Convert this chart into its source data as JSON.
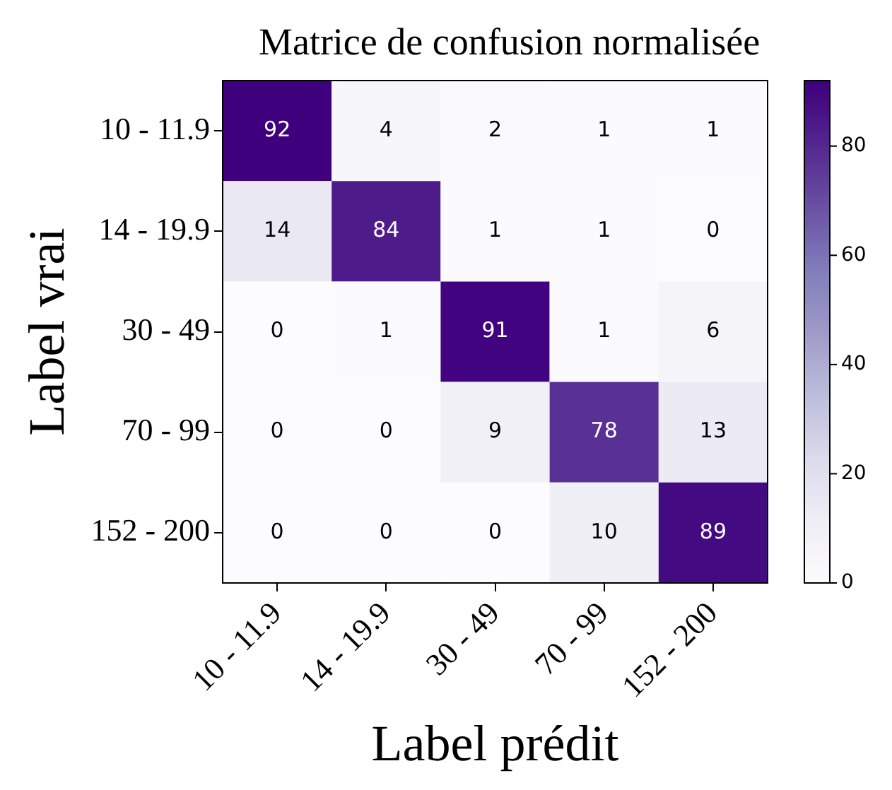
{
  "chart_data": {
    "type": "heatmap",
    "title": "Matrice de confusion normalisée",
    "xlabel": "Label prédit",
    "ylabel": "Label vrai",
    "categories": [
      "10 - 11.9",
      "14 - 19.9",
      "30 - 49",
      "70 - 99",
      "152 - 200"
    ],
    "y_categories": [
      "10 - 11.9",
      "14 - 19.9",
      "30 - 49",
      "70 - 99",
      "152 - 200"
    ],
    "cells": [
      [
        92,
        4,
        2,
        1,
        1
      ],
      [
        14,
        84,
        1,
        1,
        0
      ],
      [
        0,
        1,
        91,
        1,
        6
      ],
      [
        0,
        0,
        9,
        78,
        13
      ],
      [
        0,
        0,
        0,
        10,
        89
      ]
    ],
    "clim": [
      0,
      92
    ],
    "cticks": [
      0,
      20,
      40,
      60,
      80
    ],
    "data_labels": true
  }
}
